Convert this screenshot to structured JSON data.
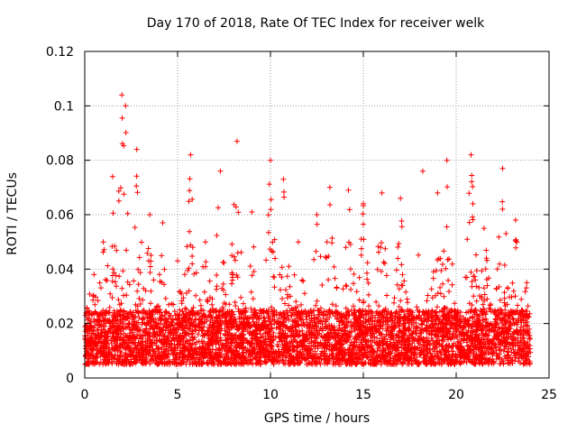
{
  "chart_data": {
    "type": "scatter",
    "title": "Day 170 of 2018, Rate Of TEC Index for receiver welk",
    "xlabel": "GPS time / hours",
    "ylabel": "ROTI / TECUs",
    "xlim": [
      0,
      25
    ],
    "ylim": [
      0,
      0.12
    ],
    "xticks": [
      0,
      5,
      10,
      15,
      20,
      25
    ],
    "yticks": [
      0,
      0.02,
      0.04,
      0.06,
      0.08,
      0.1,
      0.12
    ],
    "xtick_labels": [
      "0",
      "5",
      "10",
      "15",
      "20",
      "25"
    ],
    "ytick_labels": [
      "0",
      "0.02",
      "0.04",
      "0.06",
      "0.08",
      "0.1",
      "0.12"
    ],
    "grid": true,
    "marker": "+",
    "series": [
      {
        "name": "ROTI",
        "color": "#ff0000",
        "x_range": [
          0,
          24
        ],
        "baseline_range": [
          0.005,
          0.025
        ],
        "peaks": [
          {
            "x": 0.5,
            "y": 0.038
          },
          {
            "x": 1.0,
            "y": 0.05
          },
          {
            "x": 1.5,
            "y": 0.074
          },
          {
            "x": 2.0,
            "y": 0.104
          },
          {
            "x": 2.2,
            "y": 0.1
          },
          {
            "x": 2.8,
            "y": 0.084
          },
          {
            "x": 3.5,
            "y": 0.06
          },
          {
            "x": 4.2,
            "y": 0.057
          },
          {
            "x": 5.0,
            "y": 0.043
          },
          {
            "x": 5.7,
            "y": 0.082
          },
          {
            "x": 6.5,
            "y": 0.05
          },
          {
            "x": 7.3,
            "y": 0.076
          },
          {
            "x": 8.2,
            "y": 0.087
          },
          {
            "x": 9.0,
            "y": 0.061
          },
          {
            "x": 10.0,
            "y": 0.08
          },
          {
            "x": 10.7,
            "y": 0.073
          },
          {
            "x": 11.5,
            "y": 0.05
          },
          {
            "x": 12.5,
            "y": 0.06
          },
          {
            "x": 13.2,
            "y": 0.07
          },
          {
            "x": 14.2,
            "y": 0.069
          },
          {
            "x": 15.0,
            "y": 0.064
          },
          {
            "x": 16.0,
            "y": 0.068
          },
          {
            "x": 17.0,
            "y": 0.066
          },
          {
            "x": 18.2,
            "y": 0.076
          },
          {
            "x": 19.0,
            "y": 0.068
          },
          {
            "x": 19.5,
            "y": 0.08
          },
          {
            "x": 20.8,
            "y": 0.082
          },
          {
            "x": 21.5,
            "y": 0.055
          },
          {
            "x": 22.5,
            "y": 0.077
          },
          {
            "x": 23.2,
            "y": 0.058
          },
          {
            "x": 23.8,
            "y": 0.035
          }
        ]
      }
    ]
  }
}
